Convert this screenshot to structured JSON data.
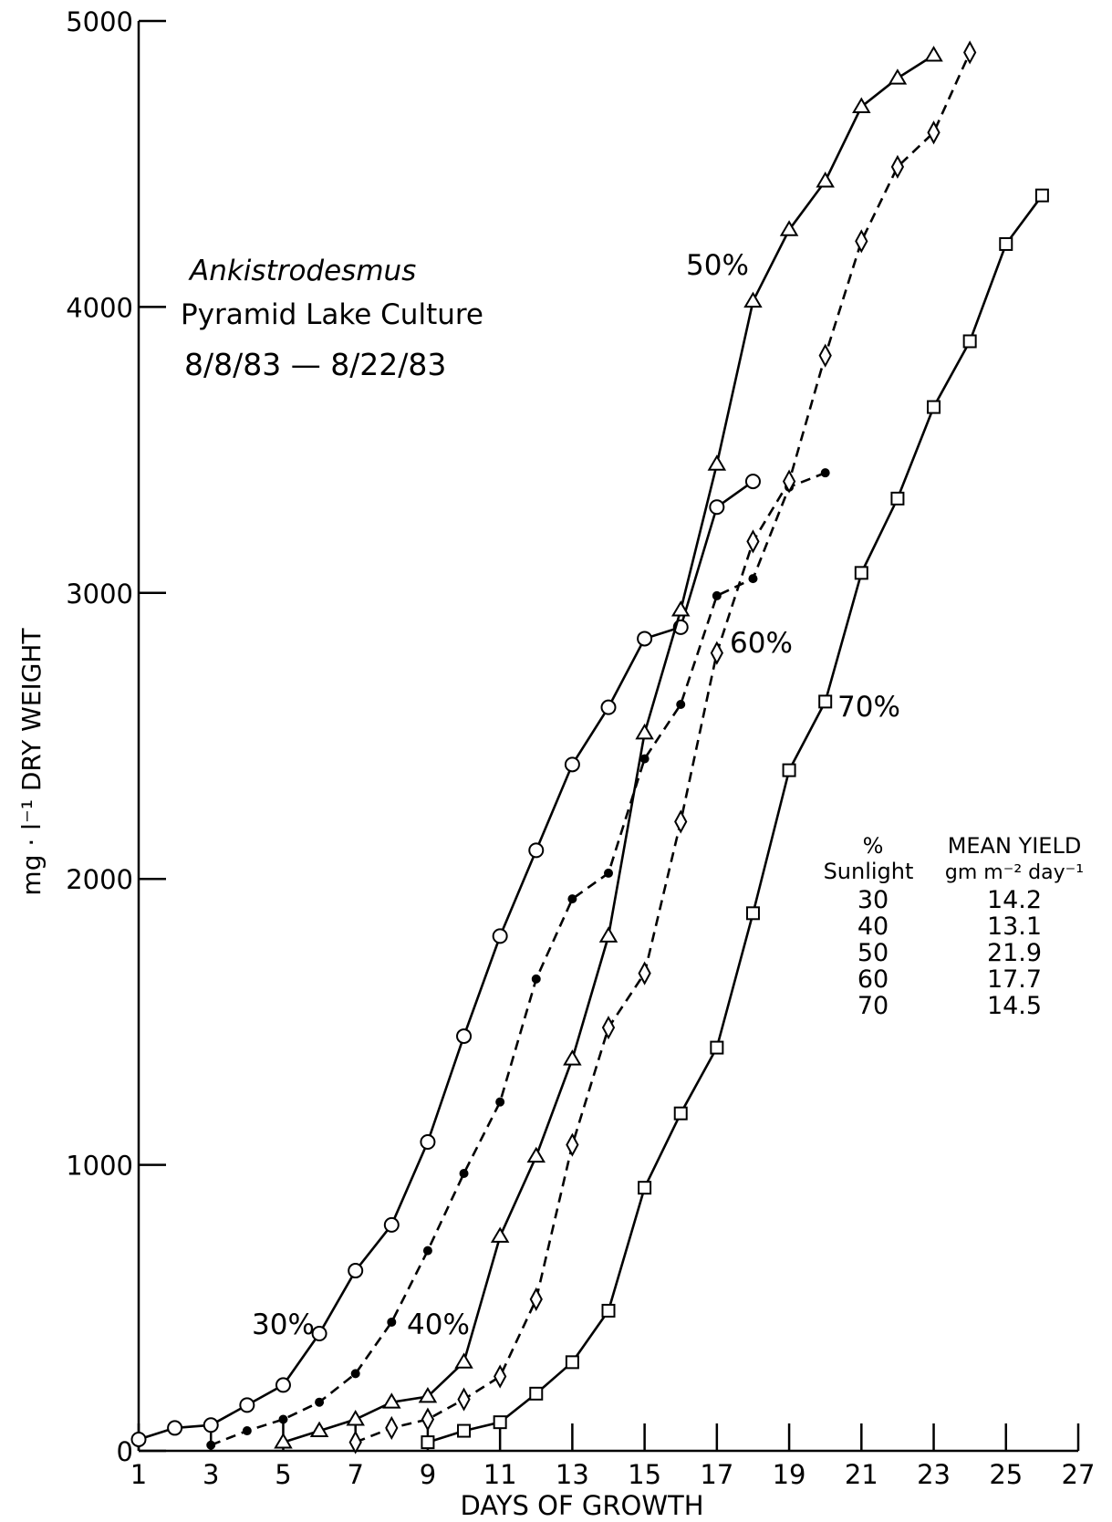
{
  "chart_data": {
    "type": "line",
    "title_lines": [
      "Ankistrodesmus",
      "Pyramid Lake Culture",
      "8/8/83 — 8/22/83"
    ],
    "xlabel": "DAYS OF GROWTH",
    "ylabel": "mg · l⁻¹  DRY  WEIGHT",
    "xlim": [
      1,
      27
    ],
    "ylim": [
      0,
      5000
    ],
    "x_ticks": [
      1,
      3,
      5,
      7,
      9,
      11,
      13,
      15,
      17,
      19,
      21,
      23,
      25,
      27
    ],
    "x_tick_labels": [
      "1",
      "3",
      "5",
      "7",
      "9",
      "11",
      "13",
      "15",
      "17",
      "19",
      "21",
      "23",
      "25",
      "27"
    ],
    "y_ticks": [
      0,
      1000,
      2000,
      3000,
      4000,
      5000
    ],
    "y_tick_labels": [
      "0",
      "1000",
      "2000",
      "3000",
      "4000",
      "5000"
    ],
    "series": [
      {
        "name": "30%",
        "marker": "circle",
        "style": "solid",
        "x": [
          1,
          2,
          3,
          4,
          5,
          6,
          7,
          8,
          9,
          10,
          11,
          12,
          13,
          14,
          15,
          16,
          17,
          18
        ],
        "y": [
          40,
          80,
          90,
          160,
          230,
          410,
          630,
          790,
          1080,
          1450,
          1800,
          2100,
          2400,
          2600,
          2840,
          2880,
          3300,
          3390
        ]
      },
      {
        "name": "40%",
        "marker": "dot",
        "style": "dashed",
        "x": [
          3,
          4,
          5,
          6,
          7,
          8,
          9,
          10,
          11,
          12,
          13,
          14,
          15,
          16,
          17,
          18,
          19,
          20
        ],
        "y": [
          20,
          70,
          110,
          170,
          270,
          450,
          700,
          970,
          1220,
          1650,
          1930,
          2020,
          2420,
          2610,
          2990,
          3050,
          3370,
          3420
        ]
      },
      {
        "name": "50%",
        "marker": "triangle",
        "style": "solid",
        "x": [
          5,
          6,
          7,
          8,
          9,
          10,
          11,
          12,
          13,
          14,
          15,
          16,
          17,
          18,
          19,
          20,
          21,
          22,
          23
        ],
        "y": [
          30,
          70,
          110,
          170,
          190,
          310,
          750,
          1030,
          1370,
          1800,
          2510,
          2940,
          3450,
          4020,
          4270,
          4440,
          4700,
          4800,
          4880
        ]
      },
      {
        "name": "60%",
        "marker": "diamond",
        "style": "dashed",
        "x": [
          7,
          8,
          9,
          10,
          11,
          12,
          13,
          14,
          15,
          16,
          17,
          18,
          19,
          20,
          21,
          22,
          23,
          24
        ],
        "y": [
          30,
          80,
          110,
          180,
          260,
          530,
          1070,
          1480,
          1670,
          2200,
          2790,
          3180,
          3390,
          3830,
          4230,
          4490,
          4610,
          4890
        ]
      },
      {
        "name": "70%",
        "marker": "square",
        "style": "solid",
        "x": [
          9,
          10,
          11,
          12,
          13,
          14,
          15,
          16,
          17,
          18,
          19,
          20,
          21,
          22,
          23,
          24,
          25,
          26
        ],
        "y": [
          30,
          70,
          100,
          200,
          310,
          490,
          920,
          1180,
          1410,
          1880,
          2380,
          2620,
          3070,
          3330,
          3650,
          3880,
          4220,
          4390
        ]
      }
    ],
    "series_label_text": [
      "30%",
      "40%",
      "50%",
      "60%",
      "70%"
    ],
    "legend_table": {
      "col1_header": [
        "%",
        "Sunlight"
      ],
      "col2_header": [
        "MEAN YIELD",
        "gm m⁻² day⁻¹"
      ],
      "rows": [
        {
          "sunlight": "30",
          "yield": "14.2"
        },
        {
          "sunlight": "40",
          "yield": "13.1"
        },
        {
          "sunlight": "50",
          "yield": "21.9"
        },
        {
          "sunlight": "60",
          "yield": "17.7"
        },
        {
          "sunlight": "70",
          "yield": "14.5"
        }
      ]
    },
    "grid": false
  }
}
